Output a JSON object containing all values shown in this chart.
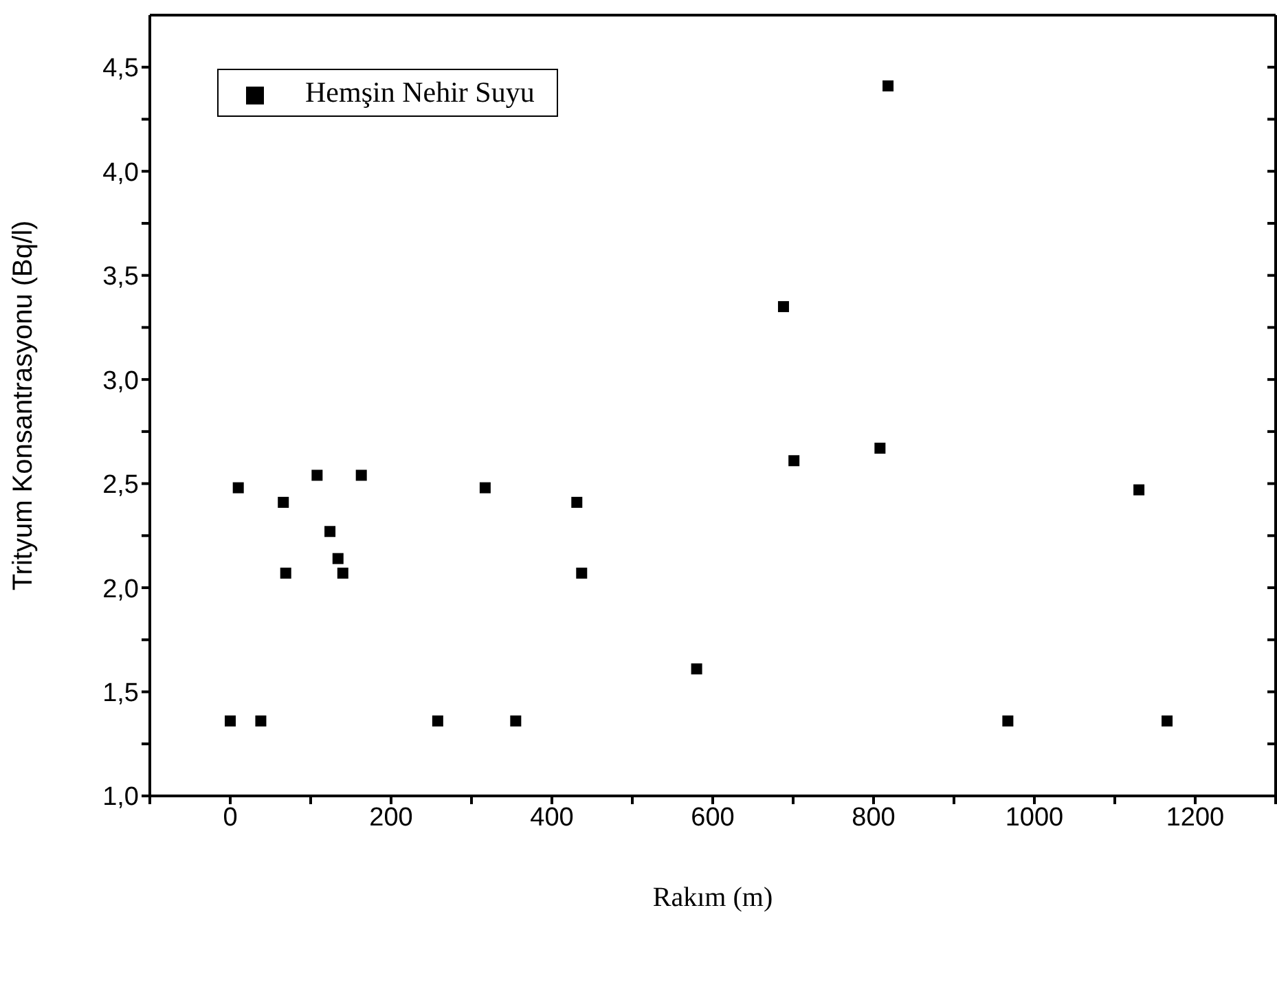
{
  "chart_data": {
    "type": "scatter",
    "xlabel": "Rakım (m)",
    "ylabel": "Trityum Konsantrasyonu (Bq/l)",
    "x": [
      10,
      66,
      108,
      163,
      124,
      134,
      69,
      140,
      317,
      431,
      437,
      0,
      38,
      258,
      355,
      580,
      701,
      808,
      1130,
      967,
      1165,
      818,
      688
    ],
    "series": [
      {
        "name": "Hemşin Nehir Suyu",
        "color": "#000000",
        "values": [
          2.48,
          2.41,
          2.54,
          2.54,
          2.27,
          2.14,
          2.07,
          2.07,
          2.48,
          2.41,
          2.07,
          1.36,
          1.36,
          1.36,
          1.36,
          1.61,
          2.61,
          2.67,
          2.47,
          1.36,
          1.36,
          4.41,
          3.35
        ]
      }
    ],
    "xlim": [
      -100,
      1300
    ],
    "xticks": [
      {
        "value": -100,
        "label": null
      },
      0,
      {
        "value": 100,
        "label": null
      },
      200,
      {
        "value": 300,
        "label": null
      },
      400,
      {
        "value": 500,
        "label": null
      },
      600,
      {
        "value": 700,
        "label": null
      },
      800,
      {
        "value": 900,
        "label": null
      },
      1000,
      {
        "value": 1100,
        "label": null
      },
      1200,
      {
        "value": 1300,
        "label": null
      }
    ],
    "ylim": [
      1,
      4.75
    ],
    "yticks": [
      {
        "value": 1,
        "label": "1,0"
      },
      {
        "value": 1.25,
        "label": null
      },
      {
        "value": 1.5,
        "label": "1,5"
      },
      {
        "value": 1.75,
        "label": null
      },
      {
        "value": 2,
        "label": "2,0"
      },
      {
        "value": 2.25,
        "label": null
      },
      {
        "value": 2.5,
        "label": "2,5"
      },
      {
        "value": 2.75,
        "label": null
      },
      {
        "value": 3,
        "label": "3,0"
      },
      {
        "value": 3.25,
        "label": null
      },
      {
        "value": 3.5,
        "label": "3,5"
      },
      {
        "value": 3.75,
        "label": null
      },
      {
        "value": 4,
        "label": "4,0"
      },
      {
        "value": 4.25,
        "label": null
      },
      {
        "value": 4.5,
        "label": "4,5"
      }
    ],
    "legend": "top left",
    "marker": "square"
  }
}
